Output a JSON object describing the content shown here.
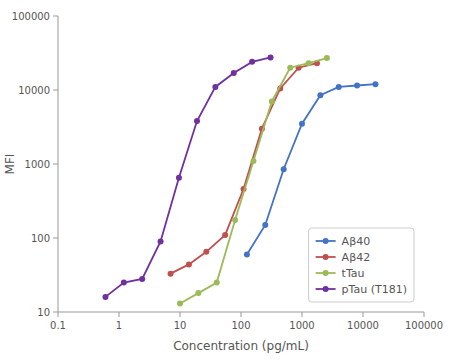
{
  "chart_data": {
    "type": "line",
    "xlabel": "Concentration (pg/mL)",
    "ylabel": "MFI",
    "log": true,
    "xlim": [
      0.1,
      100000
    ],
    "ylim": [
      10,
      100000
    ],
    "xticks": [
      0.1,
      1,
      10,
      100,
      1000,
      10000,
      100000
    ],
    "yticks": [
      10,
      100,
      1000,
      10000,
      100000
    ],
    "grid": false,
    "legend": "lower right",
    "marker": "circle",
    "series": [
      {
        "name": "Aβ40",
        "color": "#4472C4",
        "x": [
          125,
          250,
          500,
          1000,
          2000,
          4000,
          8000,
          16000
        ],
        "values": [
          60,
          150,
          850,
          3500,
          8500,
          11000,
          11500,
          12000
        ]
      },
      {
        "name": "Aβ42",
        "color": "#C0504D",
        "x": [
          7,
          14,
          27,
          55,
          110,
          220,
          440,
          880,
          1760
        ],
        "values": [
          33,
          44,
          65,
          110,
          460,
          3000,
          10500,
          20000,
          23000
        ]
      },
      {
        "name": "tTau",
        "color": "#9BBB59",
        "x": [
          10,
          20,
          40,
          80,
          160,
          320,
          640,
          1280,
          2560
        ],
        "values": [
          13,
          18,
          25,
          175,
          1100,
          7000,
          20000,
          23000,
          27000
        ]
      },
      {
        "name": "pTau (T181)",
        "color": "#7030A0",
        "x": [
          0.6,
          1.2,
          2.4,
          4.8,
          9.6,
          19,
          38,
          76,
          152,
          305
        ],
        "values": [
          16,
          25,
          28,
          90,
          650,
          3800,
          11000,
          17000,
          24000,
          27500
        ]
      }
    ]
  }
}
